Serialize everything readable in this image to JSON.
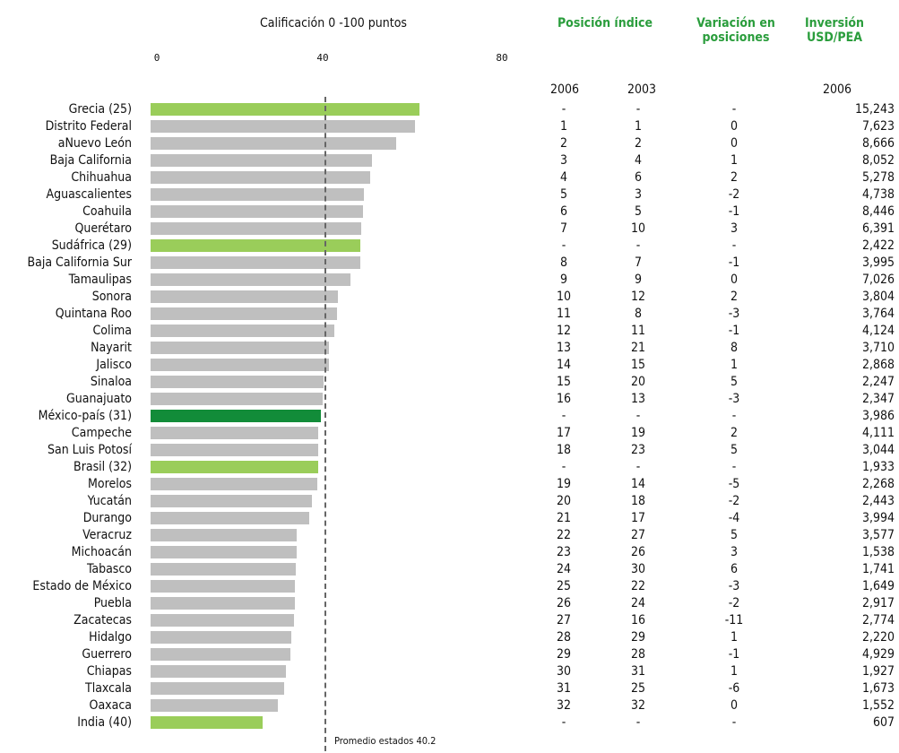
{
  "chart_data": {
    "type": "bar",
    "orientation": "horizontal",
    "title": "Calificación 0 -100 puntos",
    "xticks": [
      "0",
      "40",
      "80"
    ],
    "xlim": [
      0,
      80
    ],
    "reference_line": {
      "value": 40.2,
      "label": "Promedio estados 40.2"
    },
    "columns": {
      "posicion": "Posición índice",
      "variacion": "Variación en posiciones",
      "inversion": "Inversión USD/PEA"
    },
    "years": {
      "pos_a": "2006",
      "pos_b": "2003",
      "inv": "2006"
    },
    "colors": {
      "state": "#bfbfbf",
      "country": "#9acd5a",
      "mexico": "#128c39",
      "header": "#2a9d3c"
    },
    "rows": [
      {
        "name": "Grecia (25)",
        "value": 62.5,
        "kind": "country",
        "pos2006": "-",
        "pos2003": "-",
        "var": "-",
        "inv": "15,243"
      },
      {
        "name": "Distrito Federal",
        "value": 61.5,
        "kind": "state",
        "pos2006": "1",
        "pos2003": "1",
        "var": "0",
        "inv": "7,623"
      },
      {
        "name": "aNuevo León",
        "value": 57.0,
        "kind": "state",
        "pos2006": "2",
        "pos2003": "2",
        "var": "0",
        "inv": "8,666"
      },
      {
        "name": "Baja California",
        "value": 51.5,
        "kind": "state",
        "pos2006": "3",
        "pos2003": "4",
        "var": "1",
        "inv": "8,052"
      },
      {
        "name": "Chihuahua",
        "value": 51.0,
        "kind": "state",
        "pos2006": "4",
        "pos2003": "6",
        "var": "2",
        "inv": "5,278"
      },
      {
        "name": "Aguascalientes",
        "value": 49.5,
        "kind": "state",
        "pos2006": "5",
        "pos2003": "3",
        "var": "-2",
        "inv": "4,738"
      },
      {
        "name": "Coahuila",
        "value": 49.3,
        "kind": "state",
        "pos2006": "6",
        "pos2003": "5",
        "var": "-1",
        "inv": "8,446"
      },
      {
        "name": "Querétaro",
        "value": 49.0,
        "kind": "state",
        "pos2006": "7",
        "pos2003": "10",
        "var": "3",
        "inv": "6,391"
      },
      {
        "name": "Sudáfrica (29)",
        "value": 48.8,
        "kind": "country",
        "pos2006": "-",
        "pos2003": "-",
        "var": "-",
        "inv": "2,422"
      },
      {
        "name": "Baja California Sur",
        "value": 48.7,
        "kind": "state",
        "pos2006": "8",
        "pos2003": "7",
        "var": "-1",
        "inv": "3,995"
      },
      {
        "name": "Tamaulipas",
        "value": 46.5,
        "kind": "state",
        "pos2006": "9",
        "pos2003": "9",
        "var": "0",
        "inv": "7,026"
      },
      {
        "name": "Sonora",
        "value": 43.5,
        "kind": "state",
        "pos2006": "10",
        "pos2003": "12",
        "var": "2",
        "inv": "3,804"
      },
      {
        "name": "Quintana Roo",
        "value": 43.4,
        "kind": "state",
        "pos2006": "11",
        "pos2003": "8",
        "var": "-3",
        "inv": "3,764"
      },
      {
        "name": "Colima",
        "value": 42.8,
        "kind": "state",
        "pos2006": "12",
        "pos2003": "11",
        "var": "-1",
        "inv": "4,124"
      },
      {
        "name": "Nayarit",
        "value": 41.5,
        "kind": "state",
        "pos2006": "13",
        "pos2003": "21",
        "var": "8",
        "inv": "3,710"
      },
      {
        "name": "Jalisco",
        "value": 41.4,
        "kind": "state",
        "pos2006": "14",
        "pos2003": "15",
        "var": "1",
        "inv": "2,868"
      },
      {
        "name": "Sinaloa",
        "value": 40.2,
        "kind": "state",
        "pos2006": "15",
        "pos2003": "20",
        "var": "5",
        "inv": "2,247"
      },
      {
        "name": "Guanajuato",
        "value": 40.0,
        "kind": "state",
        "pos2006": "16",
        "pos2003": "13",
        "var": "-3",
        "inv": "2,347"
      },
      {
        "name": "México-país (31)",
        "value": 39.5,
        "kind": "mexico",
        "pos2006": "-",
        "pos2003": "-",
        "var": "-",
        "inv": "3,986"
      },
      {
        "name": "Campeche",
        "value": 39.0,
        "kind": "state",
        "pos2006": "17",
        "pos2003": "19",
        "var": "2",
        "inv": "4,111"
      },
      {
        "name": "San Luis Potosí",
        "value": 39.0,
        "kind": "state",
        "pos2006": "18",
        "pos2003": "23",
        "var": "5",
        "inv": "3,044"
      },
      {
        "name": "Brasil (32)",
        "value": 39.0,
        "kind": "country",
        "pos2006": "-",
        "pos2003": "-",
        "var": "-",
        "inv": "1,933"
      },
      {
        "name": "Morelos",
        "value": 38.7,
        "kind": "state",
        "pos2006": "19",
        "pos2003": "14",
        "var": "-5",
        "inv": "2,268"
      },
      {
        "name": "Yucatán",
        "value": 37.5,
        "kind": "state",
        "pos2006": "20",
        "pos2003": "18",
        "var": "-2",
        "inv": "2,443"
      },
      {
        "name": "Durango",
        "value": 36.8,
        "kind": "state",
        "pos2006": "21",
        "pos2003": "17",
        "var": "-4",
        "inv": "3,994"
      },
      {
        "name": "Veracruz",
        "value": 34.0,
        "kind": "state",
        "pos2006": "22",
        "pos2003": "27",
        "var": "5",
        "inv": "3,577"
      },
      {
        "name": "Michoacán",
        "value": 34.0,
        "kind": "state",
        "pos2006": "23",
        "pos2003": "26",
        "var": "3",
        "inv": "1,538"
      },
      {
        "name": "Tabasco",
        "value": 33.7,
        "kind": "state",
        "pos2006": "24",
        "pos2003": "30",
        "var": "6",
        "inv": "1,741"
      },
      {
        "name": "Estado de México",
        "value": 33.5,
        "kind": "state",
        "pos2006": "25",
        "pos2003": "22",
        "var": "-3",
        "inv": "1,649"
      },
      {
        "name": "Puebla",
        "value": 33.5,
        "kind": "state",
        "pos2006": "26",
        "pos2003": "24",
        "var": "-2",
        "inv": "2,917"
      },
      {
        "name": "Zacatecas",
        "value": 33.3,
        "kind": "state",
        "pos2006": "27",
        "pos2003": "16",
        "var": "-11",
        "inv": "2,774"
      },
      {
        "name": "Hidalgo",
        "value": 32.8,
        "kind": "state",
        "pos2006": "28",
        "pos2003": "29",
        "var": "1",
        "inv": "2,220"
      },
      {
        "name": "Guerrero",
        "value": 32.5,
        "kind": "state",
        "pos2006": "29",
        "pos2003": "28",
        "var": "-1",
        "inv": "4,929"
      },
      {
        "name": "Chiapas",
        "value": 31.5,
        "kind": "state",
        "pos2006": "30",
        "pos2003": "31",
        "var": "1",
        "inv": "1,927"
      },
      {
        "name": "Tlaxcala",
        "value": 31.0,
        "kind": "state",
        "pos2006": "31",
        "pos2003": "25",
        "var": "-6",
        "inv": "1,673"
      },
      {
        "name": "Oaxaca",
        "value": 29.5,
        "kind": "state",
        "pos2006": "32",
        "pos2003": "32",
        "var": "0",
        "inv": "1,552"
      },
      {
        "name": "India (40)",
        "value": 26.0,
        "kind": "country",
        "pos2006": "-",
        "pos2003": "-",
        "var": "-",
        "inv": "607"
      }
    ]
  }
}
